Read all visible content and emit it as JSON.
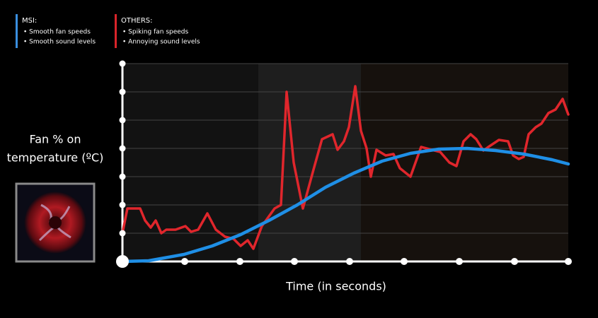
{
  "chart_data": {
    "type": "line",
    "legend": [
      {
        "title": "MSI:",
        "items": [
          "• Smooth fan speeds",
          "• Smooth sound levels"
        ],
        "color": "#3a8fe0"
      },
      {
        "title": "OTHERS:",
        "items": [
          "• Spiking fan speeds",
          "• Annoying sound levels"
        ],
        "color": "#d9242a"
      }
    ],
    "ylabel_lines": [
      "Fan % on",
      "temperature (ºC)"
    ],
    "xlabel": "Time (in seconds)",
    "xlim": [
      0,
      630
    ],
    "xticks": [
      0,
      88,
      166,
      243,
      321,
      398,
      476,
      554,
      630
    ],
    "ylim": [
      0,
      280
    ],
    "yticks": [
      0,
      40,
      80,
      120,
      160,
      200,
      240,
      280
    ],
    "grid": true,
    "series": [
      {
        "name": "OTHERS",
        "color": "#e0262c",
        "x": [
          0,
          7,
          25,
          32,
          40,
          47,
          55,
          62,
          75,
          89,
          97,
          107,
          120,
          132,
          145,
          157,
          167,
          177,
          185,
          197,
          215,
          224,
          232,
          242,
          255,
          270,
          282,
          297,
          304,
          313,
          320,
          329,
          337,
          345,
          351,
          359,
          372,
          383,
          392,
          407,
          422,
          437,
          449,
          462,
          472,
          482,
          492,
          500,
          510,
          517,
          532,
          545,
          552,
          560,
          567,
          574,
          584,
          592,
          602,
          612,
          622,
          630
        ],
        "values": [
          40,
          75,
          75,
          58,
          48,
          58,
          40,
          45,
          45,
          50,
          42,
          45,
          68,
          45,
          35,
          32,
          22,
          30,
          18,
          50,
          75,
          80,
          240,
          140,
          75,
          130,
          173,
          180,
          158,
          170,
          190,
          248,
          185,
          160,
          120,
          158,
          150,
          152,
          132,
          120,
          162,
          158,
          155,
          140,
          135,
          170,
          180,
          173,
          157,
          162,
          172,
          170,
          150,
          145,
          148,
          180,
          190,
          195,
          210,
          215,
          230,
          208
        ]
      },
      {
        "name": "MSI",
        "color": "#1f8fe6",
        "x": [
          0,
          37,
          87,
          127,
          167,
          207,
          247,
          287,
          327,
          367,
          407,
          447,
          487,
          527,
          567,
          607,
          630
        ],
        "values": [
          0,
          1,
          10,
          22,
          38,
          58,
          80,
          105,
          125,
          142,
          153,
          159,
          160,
          157,
          152,
          144,
          138
        ]
      }
    ]
  }
}
